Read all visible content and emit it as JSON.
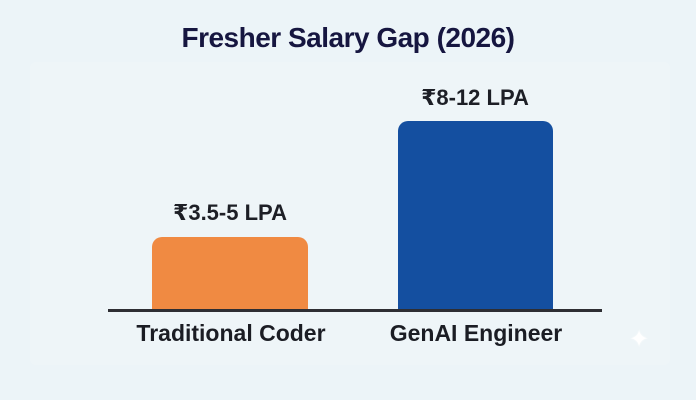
{
  "title": "Fresher Salary Gap (2026)",
  "chart_data": {
    "type": "bar",
    "title": "Fresher Salary Gap (2026)",
    "categories": [
      "Traditional Coder",
      "GenAI Engineer"
    ],
    "values": [
      4.25,
      10
    ],
    "value_labels": [
      "₹3.5-5 LPA",
      "₹8-12 LPA"
    ],
    "series": [
      {
        "name": "Traditional Coder",
        "salary_range_lpa": "₹3.5-5 LPA",
        "bar_color": "#f08a42"
      },
      {
        "name": "GenAI Engineer",
        "salary_range_lpa": "₹8-12 LPA",
        "bar_color": "#144fa0"
      }
    ],
    "xlabel": "",
    "ylabel": "",
    "grid": false,
    "legend": false,
    "axis_line_color": "#2e2e33"
  },
  "colors": {
    "background": "#ecf4f8",
    "title_text": "#161640",
    "label_text": "#1b1d24",
    "bar_traditional": "#f08a42",
    "bar_genai": "#144fa0"
  },
  "decor": {
    "sparkle": "✦"
  }
}
